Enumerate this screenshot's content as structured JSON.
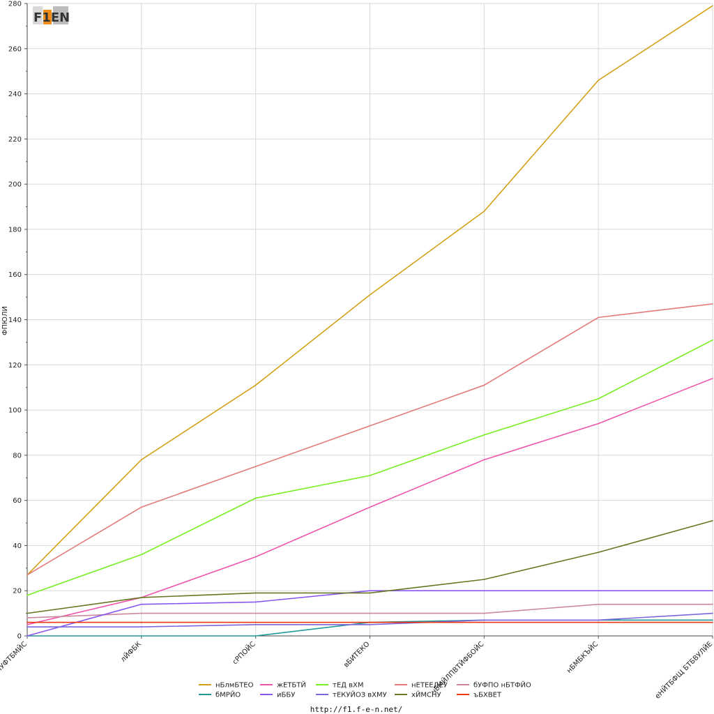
{
  "logo": {
    "text": "F1EN"
  },
  "chart_data": {
    "type": "line",
    "title": "",
    "xlabel": "",
    "ylabel": "ФПЮЛИ",
    "ylim": [
      0,
      280
    ],
    "yticks": [
      0,
      20,
      40,
      60,
      80,
      100,
      120,
      140,
      160,
      180,
      200,
      220,
      240,
      260,
      280
    ],
    "grid": true,
    "legend_position": "bottom-center",
    "categories": [
      "БЧУФТБМЙС",
      "лЙФБК",
      "сРПОЙС",
      "вБИТЕКО",
      "чЕМЙЛПВТЙФБОЙС",
      "нБМБКЪЙС",
      "еНЙТБФЩ БТБВУЛЙЕ"
    ],
    "series": [
      {
        "name": "нБлмБТЕО",
        "color": "#d4a017",
        "values": [
          27,
          78,
          111,
          151,
          188,
          246,
          279
        ]
      },
      {
        "name": "жЕТБТЙ",
        "color": "#ee55aa",
        "values": [
          5,
          17,
          35,
          57,
          78,
          94,
          114
        ]
      },
      {
        "name": "тЕД вХМ",
        "color": "#77ee22",
        "values": [
          18,
          36,
          61,
          71,
          89,
          105,
          131
        ]
      },
      {
        "name": "нЕТЕЕДЕУ",
        "color": "#e27a7a",
        "values": [
          27,
          57,
          75,
          93,
          111,
          141,
          147
        ]
      },
      {
        "name": "бУФПО нБТФЙО",
        "color": "#cc8899",
        "values": [
          8,
          10,
          10,
          10,
          10,
          14,
          14
        ]
      },
      {
        "name": "бМРЙО",
        "color": "#229999",
        "values": [
          0,
          0,
          0,
          6,
          7,
          7,
          7
        ]
      },
      {
        "name": "иББУ",
        "color": "#8855ee",
        "values": [
          0,
          14,
          15,
          20,
          20,
          20,
          20
        ]
      },
      {
        "name": "тЕКУЙОЗ вХМУ",
        "color": "#7766dd",
        "values": [
          4,
          4,
          5,
          5,
          7,
          7,
          10
        ]
      },
      {
        "name": "хЙМСНУ",
        "color": "#667722",
        "values": [
          10,
          17,
          19,
          19,
          25,
          37,
          51
        ]
      },
      {
        "name": "ъБХВЕТ",
        "color": "#ee3311",
        "values": [
          6,
          6,
          6,
          6,
          6,
          6,
          6
        ]
      }
    ],
    "legend_order": [
      "нБлмБТЕО",
      "жЕТБТЙ",
      "тЕД вХМ",
      "нЕТЕЕДЕУ",
      "бУФПО нБТФЙО",
      "бМРЙО",
      "иББУ",
      "тЕКУЙОЗ вХМУ",
      "хЙМСНУ",
      "ъБХВЕТ"
    ]
  },
  "footer": {
    "url": "http://f1.f-e-n.net/"
  }
}
